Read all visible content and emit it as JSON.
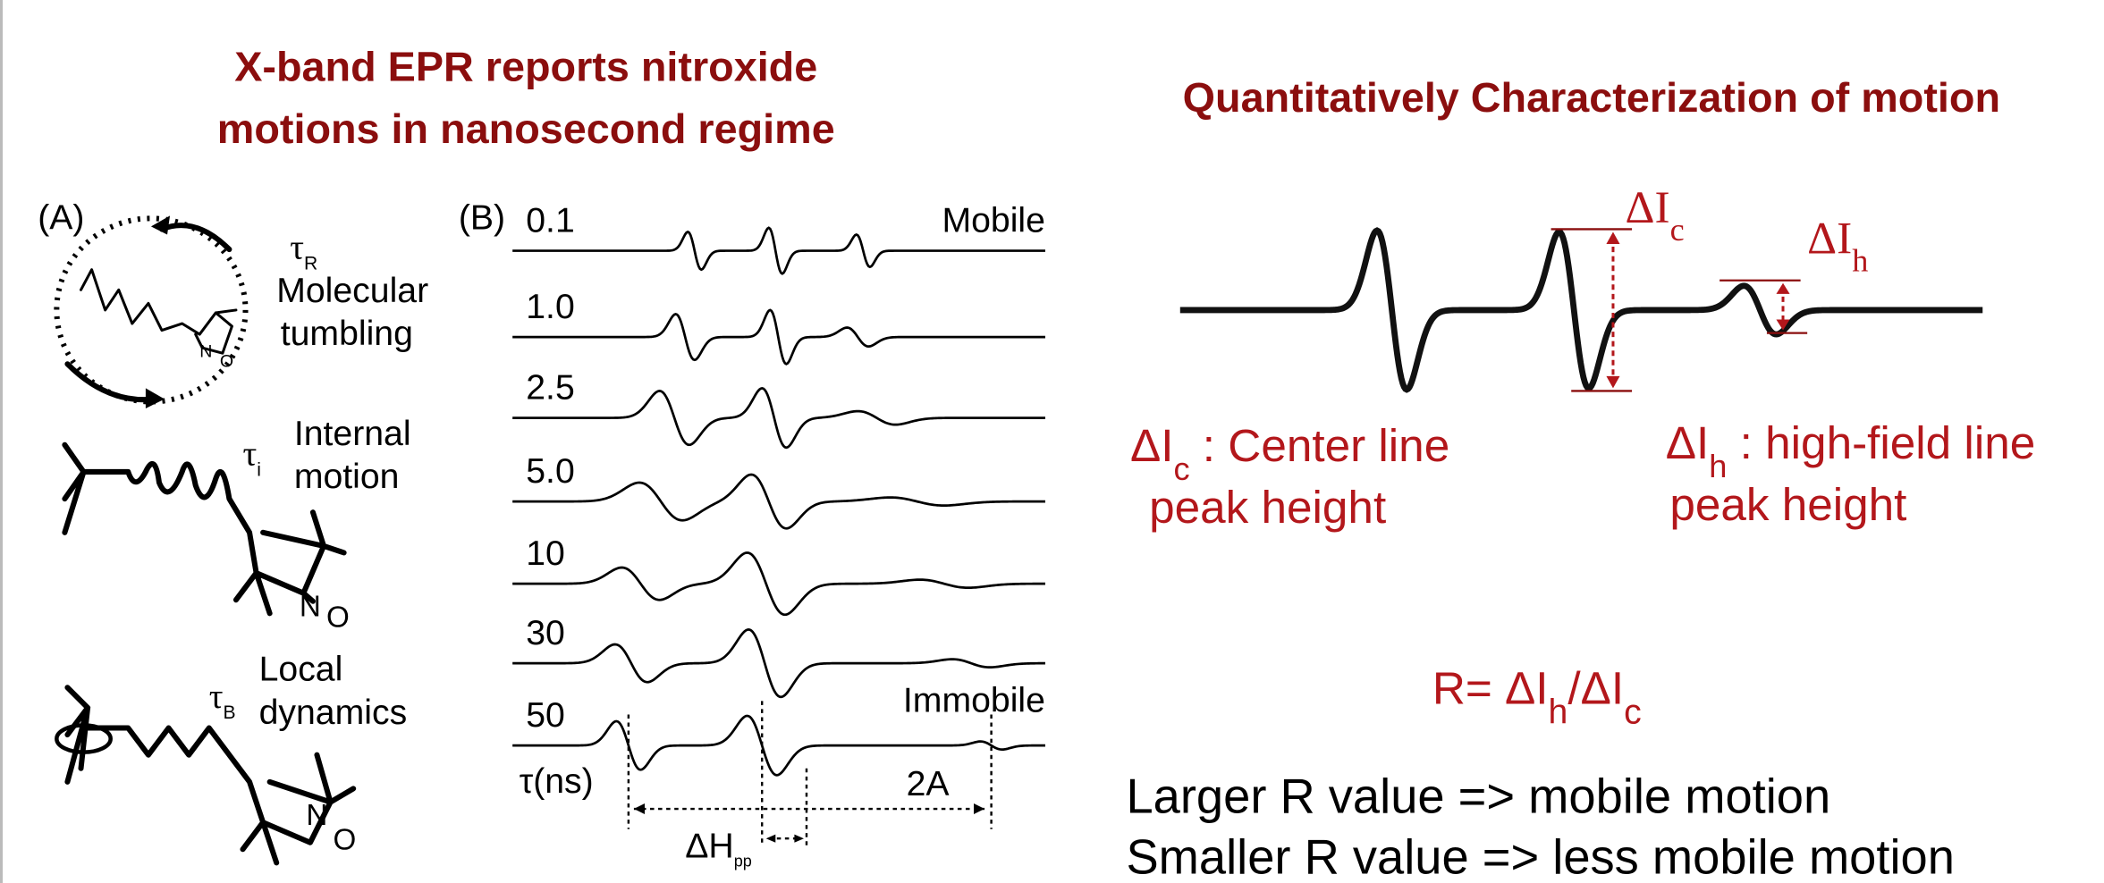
{
  "left_panel": {
    "title": [
      "X-band EPR reports nitroxide",
      "motions in nanosecond regime"
    ],
    "panel_a": {
      "label": "(A)",
      "tau": "τ",
      "nitrogen": "N",
      "oxygen": "O",
      "motions": [
        {
          "subscript": "R",
          "label": [
            "Molecular",
            "tumbling"
          ]
        },
        {
          "subscript": "i",
          "label": [
            "Internal",
            "motion"
          ]
        },
        {
          "subscript": "B",
          "label": [
            "Local",
            "dynamics"
          ]
        }
      ]
    },
    "panel_b": {
      "label": "(B)",
      "spectra": [
        "0.1",
        "1.0",
        "2.5",
        "5.0",
        "10",
        "30",
        "50"
      ],
      "mobile": "Mobile",
      "immobile": "Immobile",
      "axis_label": "τ(ns)",
      "delta_h": "ΔH",
      "delta_h_sub": "pp",
      "two_a": "2A"
    }
  },
  "right_panel": {
    "title": "Quantitatively Characterization of motion",
    "delta_i": "ΔI",
    "center_sub": "c",
    "high_sub": "h",
    "center_definition": [
      " : Center line",
      "peak height"
    ],
    "high_definition": [
      " : high-field line",
      "peak height"
    ],
    "ratio": {
      "lhs": "R= ΔI",
      "mid": "/ΔI"
    },
    "conclusions": [
      "Larger R value => mobile motion",
      "Smaller R value => less mobile motion"
    ]
  }
}
